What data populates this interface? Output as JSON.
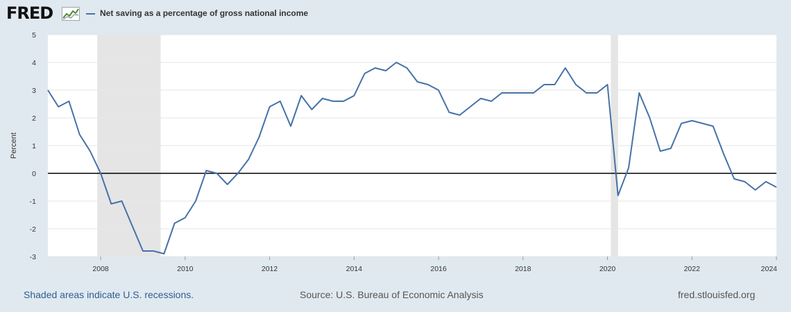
{
  "header": {
    "logo_text": "FRED",
    "logo_icon": "chart-line-icon"
  },
  "chart_data": {
    "type": "line",
    "title": "",
    "ylabel": "Percent",
    "xlabel": "",
    "ylim": [
      -3,
      5
    ],
    "xlim": [
      2006.75,
      2024.0
    ],
    "yticks": [
      {
        "value": 5,
        "label": "5"
      },
      {
        "value": 4,
        "label": "4"
      },
      {
        "value": 3,
        "label": "3"
      },
      {
        "value": 2,
        "label": "2"
      },
      {
        "value": 1,
        "label": "1"
      },
      {
        "value": 0,
        "label": "0"
      },
      {
        "value": -1,
        "label": "-1"
      },
      {
        "value": -2,
        "label": "-2"
      },
      {
        "value": -3,
        "label": "-3"
      }
    ],
    "xticks": [
      {
        "value": 2008,
        "label": "2008"
      },
      {
        "value": 2010,
        "label": "2010"
      },
      {
        "value": 2012,
        "label": "2012"
      },
      {
        "value": 2014,
        "label": "2014"
      },
      {
        "value": 2016,
        "label": "2016"
      },
      {
        "value": 2018,
        "label": "2018"
      },
      {
        "value": 2020,
        "label": "2020"
      },
      {
        "value": 2022,
        "label": "2022"
      },
      {
        "value": 2024,
        "label": "2024"
      }
    ],
    "grid": true,
    "zero_line": true,
    "recessions": [
      {
        "start": 2007.92,
        "end": 2009.42
      },
      {
        "start": 2020.08,
        "end": 2020.25
      }
    ],
    "series": [
      {
        "name": "Net saving as a percentage of gross national income",
        "color": "#4572a7",
        "points": [
          {
            "x": 2006.75,
            "y": 3.0
          },
          {
            "x": 2007.0,
            "y": 2.4
          },
          {
            "x": 2007.25,
            "y": 2.6
          },
          {
            "x": 2007.5,
            "y": 1.4
          },
          {
            "x": 2007.75,
            "y": 0.8
          },
          {
            "x": 2008.0,
            "y": 0.0
          },
          {
            "x": 2008.25,
            "y": -1.1
          },
          {
            "x": 2008.5,
            "y": -1.0
          },
          {
            "x": 2008.75,
            "y": -1.9
          },
          {
            "x": 2009.0,
            "y": -2.8
          },
          {
            "x": 2009.25,
            "y": -2.8
          },
          {
            "x": 2009.5,
            "y": -2.9
          },
          {
            "x": 2009.75,
            "y": -1.8
          },
          {
            "x": 2010.0,
            "y": -1.6
          },
          {
            "x": 2010.25,
            "y": -1.0
          },
          {
            "x": 2010.5,
            "y": 0.1
          },
          {
            "x": 2010.75,
            "y": 0.0
          },
          {
            "x": 2011.0,
            "y": -0.4
          },
          {
            "x": 2011.25,
            "y": 0.0
          },
          {
            "x": 2011.5,
            "y": 0.5
          },
          {
            "x": 2011.75,
            "y": 1.3
          },
          {
            "x": 2012.0,
            "y": 2.4
          },
          {
            "x": 2012.25,
            "y": 2.6
          },
          {
            "x": 2012.5,
            "y": 1.7
          },
          {
            "x": 2012.75,
            "y": 2.8
          },
          {
            "x": 2013.0,
            "y": 2.3
          },
          {
            "x": 2013.25,
            "y": 2.7
          },
          {
            "x": 2013.5,
            "y": 2.6
          },
          {
            "x": 2013.75,
            "y": 2.6
          },
          {
            "x": 2014.0,
            "y": 2.8
          },
          {
            "x": 2014.25,
            "y": 3.6
          },
          {
            "x": 2014.5,
            "y": 3.8
          },
          {
            "x": 2014.75,
            "y": 3.7
          },
          {
            "x": 2015.0,
            "y": 4.0
          },
          {
            "x": 2015.25,
            "y": 3.8
          },
          {
            "x": 2015.5,
            "y": 3.3
          },
          {
            "x": 2015.75,
            "y": 3.2
          },
          {
            "x": 2016.0,
            "y": 3.0
          },
          {
            "x": 2016.25,
            "y": 2.2
          },
          {
            "x": 2016.5,
            "y": 2.1
          },
          {
            "x": 2016.75,
            "y": 2.4
          },
          {
            "x": 2017.0,
            "y": 2.7
          },
          {
            "x": 2017.25,
            "y": 2.6
          },
          {
            "x": 2017.5,
            "y": 2.9
          },
          {
            "x": 2017.75,
            "y": 2.9
          },
          {
            "x": 2018.0,
            "y": 2.9
          },
          {
            "x": 2018.25,
            "y": 2.9
          },
          {
            "x": 2018.5,
            "y": 3.2
          },
          {
            "x": 2018.75,
            "y": 3.2
          },
          {
            "x": 2019.0,
            "y": 3.8
          },
          {
            "x": 2019.25,
            "y": 3.2
          },
          {
            "x": 2019.5,
            "y": 2.9
          },
          {
            "x": 2019.75,
            "y": 2.9
          },
          {
            "x": 2020.0,
            "y": 3.2
          },
          {
            "x": 2020.25,
            "y": -0.8
          },
          {
            "x": 2020.5,
            "y": 0.2
          },
          {
            "x": 2020.75,
            "y": 2.9
          },
          {
            "x": 2021.0,
            "y": 2.0
          },
          {
            "x": 2021.25,
            "y": 0.8
          },
          {
            "x": 2021.5,
            "y": 0.9
          },
          {
            "x": 2021.75,
            "y": 1.8
          },
          {
            "x": 2022.0,
            "y": 1.9
          },
          {
            "x": 2022.25,
            "y": 1.8
          },
          {
            "x": 2022.5,
            "y": 1.7
          },
          {
            "x": 2022.75,
            "y": 0.7
          },
          {
            "x": 2023.0,
            "y": -0.2
          },
          {
            "x": 2023.25,
            "y": -0.3
          },
          {
            "x": 2023.5,
            "y": -0.6
          },
          {
            "x": 2023.75,
            "y": -0.3
          },
          {
            "x": 2024.0,
            "y": -0.5
          }
        ]
      }
    ],
    "colors": {
      "background": "#e1e9f0",
      "plot_background": "#ffffff",
      "grid": "#e6e6e6",
      "recession": "#e5e5e5",
      "zero_line": "#000000"
    }
  },
  "footer": {
    "recession_note": "Shaded areas indicate U.S. recessions.",
    "source": "Source: U.S. Bureau of Economic Analysis",
    "url": "fred.stlouisfed.org"
  }
}
